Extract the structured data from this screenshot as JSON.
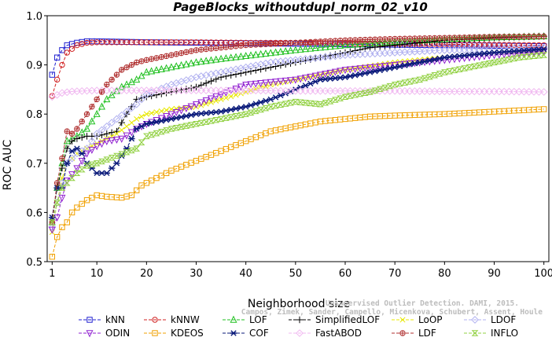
{
  "chart_data": {
    "type": "line",
    "title": "PageBlocks_withoutdupl_norm_02_v10",
    "xlabel": "Neighborhood size",
    "ylabel": "ROC AUC",
    "xlim": [
      0,
      101
    ],
    "ylim": [
      0.5,
      1.0
    ],
    "xticks": [
      1,
      10,
      20,
      30,
      40,
      50,
      60,
      70,
      80,
      90,
      100
    ],
    "yticks": [
      0.5,
      0.6,
      0.7,
      0.8,
      0.9,
      1.0
    ],
    "ytick_labels": [
      "0.5",
      "0.6",
      "0.7",
      "0.8",
      "0.9",
      "1.0"
    ],
    "grid": false,
    "legend_position": "bottom",
    "watermark": [
      "Campos, Zimek, Sander, Campello, Micenkova, Schubert, Assent, Houle",
      "Unsupervised Outlier Detection. DAMI, 2015."
    ],
    "series": [
      {
        "name": "kNN",
        "color": "#1f1fd0",
        "marker": "square",
        "points": [
          [
            1,
            0.88
          ],
          [
            2,
            0.915
          ],
          [
            3,
            0.93
          ],
          [
            4,
            0.94
          ],
          [
            6,
            0.945
          ],
          [
            8,
            0.948
          ],
          [
            10,
            0.948
          ],
          [
            15,
            0.947
          ],
          [
            20,
            0.946
          ],
          [
            30,
            0.945
          ],
          [
            40,
            0.944
          ],
          [
            50,
            0.943
          ],
          [
            60,
            0.942
          ],
          [
            70,
            0.941
          ],
          [
            80,
            0.94
          ],
          [
            90,
            0.939
          ],
          [
            100,
            0.938
          ]
        ]
      },
      {
        "name": "kNNW",
        "color": "#d02020",
        "marker": "circle",
        "points": [
          [
            1,
            0.837
          ],
          [
            2,
            0.87
          ],
          [
            3,
            0.9
          ],
          [
            4,
            0.925
          ],
          [
            6,
            0.94
          ],
          [
            8,
            0.945
          ],
          [
            10,
            0.946
          ],
          [
            15,
            0.946
          ],
          [
            20,
            0.946
          ],
          [
            30,
            0.946
          ],
          [
            40,
            0.945
          ],
          [
            50,
            0.945
          ],
          [
            60,
            0.944
          ],
          [
            70,
            0.943
          ],
          [
            80,
            0.942
          ],
          [
            90,
            0.941
          ],
          [
            100,
            0.94
          ]
        ]
      },
      {
        "name": "LOF",
        "color": "#20c020",
        "marker": "triangle",
        "points": [
          [
            1,
            0.58
          ],
          [
            2,
            0.65
          ],
          [
            3,
            0.7
          ],
          [
            4,
            0.745
          ],
          [
            6,
            0.755
          ],
          [
            8,
            0.77
          ],
          [
            10,
            0.8
          ],
          [
            12,
            0.83
          ],
          [
            15,
            0.855
          ],
          [
            18,
            0.87
          ],
          [
            20,
            0.885
          ],
          [
            25,
            0.895
          ],
          [
            30,
            0.905
          ],
          [
            35,
            0.912
          ],
          [
            40,
            0.918
          ],
          [
            50,
            0.93
          ],
          [
            60,
            0.94
          ],
          [
            70,
            0.947
          ],
          [
            80,
            0.952
          ],
          [
            90,
            0.956
          ],
          [
            100,
            0.958
          ]
        ]
      },
      {
        "name": "SimplifiedLOF",
        "color": "#000000",
        "marker": "plus",
        "points": [
          [
            1,
            0.59
          ],
          [
            2,
            0.65
          ],
          [
            3,
            0.69
          ],
          [
            4,
            0.73
          ],
          [
            5,
            0.745
          ],
          [
            6,
            0.75
          ],
          [
            8,
            0.755
          ],
          [
            10,
            0.755
          ],
          [
            12,
            0.76
          ],
          [
            14,
            0.765
          ],
          [
            16,
            0.8
          ],
          [
            18,
            0.83
          ],
          [
            20,
            0.835
          ],
          [
            25,
            0.845
          ],
          [
            30,
            0.855
          ],
          [
            35,
            0.875
          ],
          [
            40,
            0.885
          ],
          [
            45,
            0.895
          ],
          [
            50,
            0.905
          ],
          [
            55,
            0.915
          ],
          [
            60,
            0.925
          ],
          [
            65,
            0.935
          ],
          [
            70,
            0.94
          ],
          [
            80,
            0.95
          ],
          [
            90,
            0.955
          ],
          [
            100,
            0.958
          ]
        ]
      },
      {
        "name": "LoOP",
        "color": "#e8e800",
        "marker": "cross",
        "points": [
          [
            1,
            0.56
          ],
          [
            2,
            0.62
          ],
          [
            3,
            0.67
          ],
          [
            4,
            0.7
          ],
          [
            6,
            0.72
          ],
          [
            8,
            0.73
          ],
          [
            10,
            0.74
          ],
          [
            14,
            0.76
          ],
          [
            18,
            0.79
          ],
          [
            20,
            0.8
          ],
          [
            25,
            0.81
          ],
          [
            30,
            0.815
          ],
          [
            35,
            0.83
          ],
          [
            40,
            0.845
          ],
          [
            45,
            0.86
          ],
          [
            50,
            0.87
          ],
          [
            55,
            0.88
          ],
          [
            60,
            0.89
          ],
          [
            70,
            0.905
          ],
          [
            80,
            0.915
          ],
          [
            90,
            0.925
          ],
          [
            100,
            0.93
          ]
        ]
      },
      {
        "name": "LDOF",
        "color": "#b0b0f0",
        "marker": "diamond",
        "points": [
          [
            1,
            0.57
          ],
          [
            2,
            0.62
          ],
          [
            3,
            0.66
          ],
          [
            4,
            0.7
          ],
          [
            6,
            0.72
          ],
          [
            8,
            0.73
          ],
          [
            10,
            0.76
          ],
          [
            14,
            0.79
          ],
          [
            18,
            0.82
          ],
          [
            20,
            0.84
          ],
          [
            25,
            0.86
          ],
          [
            30,
            0.875
          ],
          [
            35,
            0.885
          ],
          [
            40,
            0.895
          ],
          [
            45,
            0.905
          ],
          [
            50,
            0.91
          ],
          [
            60,
            0.92
          ],
          [
            70,
            0.925
          ],
          [
            80,
            0.93
          ],
          [
            90,
            0.932
          ],
          [
            100,
            0.935
          ]
        ]
      },
      {
        "name": "ODIN",
        "color": "#9020d0",
        "marker": "triangle-down",
        "points": [
          [
            1,
            0.565
          ],
          [
            2,
            0.59
          ],
          [
            3,
            0.63
          ],
          [
            4,
            0.665
          ],
          [
            6,
            0.69
          ],
          [
            8,
            0.72
          ],
          [
            10,
            0.735
          ],
          [
            12,
            0.745
          ],
          [
            15,
            0.75
          ],
          [
            18,
            0.77
          ],
          [
            20,
            0.78
          ],
          [
            25,
            0.8
          ],
          [
            30,
            0.82
          ],
          [
            35,
            0.84
          ],
          [
            40,
            0.86
          ],
          [
            45,
            0.865
          ],
          [
            50,
            0.87
          ],
          [
            55,
            0.88
          ],
          [
            60,
            0.89
          ],
          [
            70,
            0.9
          ],
          [
            80,
            0.91
          ],
          [
            90,
            0.92
          ],
          [
            100,
            0.928
          ]
        ]
      },
      {
        "name": "KDEOS",
        "color": "#f0a000",
        "marker": "square",
        "points": [
          [
            1,
            0.51
          ],
          [
            2,
            0.55
          ],
          [
            3,
            0.57
          ],
          [
            4,
            0.58
          ],
          [
            5,
            0.6
          ],
          [
            6,
            0.61
          ],
          [
            8,
            0.625
          ],
          [
            10,
            0.635
          ],
          [
            12,
            0.632
          ],
          [
            15,
            0.63
          ],
          [
            17,
            0.635
          ],
          [
            19,
            0.655
          ],
          [
            20,
            0.66
          ],
          [
            25,
            0.685
          ],
          [
            30,
            0.705
          ],
          [
            35,
            0.725
          ],
          [
            40,
            0.745
          ],
          [
            45,
            0.765
          ],
          [
            50,
            0.775
          ],
          [
            55,
            0.785
          ],
          [
            60,
            0.79
          ],
          [
            65,
            0.795
          ],
          [
            70,
            0.797
          ],
          [
            80,
            0.8
          ],
          [
            90,
            0.805
          ],
          [
            100,
            0.81
          ]
        ]
      },
      {
        "name": "COF",
        "color": "#0a1a7a",
        "marker": "asterisk",
        "points": [
          [
            1,
            0.59
          ],
          [
            2,
            0.65
          ],
          [
            3,
            0.65
          ],
          [
            4,
            0.7
          ],
          [
            5,
            0.725
          ],
          [
            6,
            0.73
          ],
          [
            7,
            0.72
          ],
          [
            8,
            0.7
          ],
          [
            10,
            0.68
          ],
          [
            12,
            0.68
          ],
          [
            14,
            0.7
          ],
          [
            16,
            0.73
          ],
          [
            17,
            0.75
          ],
          [
            18,
            0.77
          ],
          [
            20,
            0.78
          ],
          [
            25,
            0.79
          ],
          [
            30,
            0.8
          ],
          [
            35,
            0.805
          ],
          [
            40,
            0.815
          ],
          [
            45,
            0.83
          ],
          [
            50,
            0.85
          ],
          [
            55,
            0.87
          ],
          [
            60,
            0.875
          ],
          [
            65,
            0.885
          ],
          [
            70,
            0.895
          ],
          [
            75,
            0.905
          ],
          [
            80,
            0.915
          ],
          [
            90,
            0.925
          ],
          [
            100,
            0.932
          ]
        ]
      },
      {
        "name": "FastABOD",
        "color": "#f0b8f0",
        "marker": "diamond",
        "points": [
          [
            1,
            0.835
          ],
          [
            3,
            0.843
          ],
          [
            5,
            0.846
          ],
          [
            10,
            0.848
          ],
          [
            20,
            0.848
          ],
          [
            30,
            0.848
          ],
          [
            40,
            0.848
          ],
          [
            50,
            0.847
          ],
          [
            60,
            0.847
          ],
          [
            70,
            0.847
          ],
          [
            80,
            0.846
          ],
          [
            90,
            0.846
          ],
          [
            100,
            0.845
          ]
        ]
      },
      {
        "name": "LDF",
        "color": "#b03030",
        "marker": "circle-plus",
        "points": [
          [
            1,
            0.58
          ],
          [
            2,
            0.66
          ],
          [
            3,
            0.71
          ],
          [
            4,
            0.765
          ],
          [
            5,
            0.76
          ],
          [
            6,
            0.77
          ],
          [
            8,
            0.8
          ],
          [
            10,
            0.83
          ],
          [
            12,
            0.86
          ],
          [
            15,
            0.89
          ],
          [
            18,
            0.905
          ],
          [
            20,
            0.91
          ],
          [
            25,
            0.92
          ],
          [
            30,
            0.93
          ],
          [
            35,
            0.935
          ],
          [
            40,
            0.94
          ],
          [
            50,
            0.945
          ],
          [
            60,
            0.95
          ],
          [
            70,
            0.953
          ],
          [
            80,
            0.955
          ],
          [
            90,
            0.957
          ],
          [
            100,
            0.958
          ]
        ]
      },
      {
        "name": "INFLO",
        "color": "#90d040",
        "marker": "hourglass",
        "points": [
          [
            1,
            0.58
          ],
          [
            2,
            0.62
          ],
          [
            3,
            0.65
          ],
          [
            4,
            0.66
          ],
          [
            6,
            0.68
          ],
          [
            8,
            0.695
          ],
          [
            10,
            0.7
          ],
          [
            14,
            0.715
          ],
          [
            18,
            0.73
          ],
          [
            20,
            0.755
          ],
          [
            25,
            0.77
          ],
          [
            30,
            0.78
          ],
          [
            35,
            0.79
          ],
          [
            40,
            0.8
          ],
          [
            45,
            0.815
          ],
          [
            50,
            0.825
          ],
          [
            55,
            0.82
          ],
          [
            60,
            0.835
          ],
          [
            65,
            0.845
          ],
          [
            70,
            0.86
          ],
          [
            75,
            0.87
          ],
          [
            80,
            0.885
          ],
          [
            85,
            0.895
          ],
          [
            90,
            0.905
          ],
          [
            95,
            0.915
          ],
          [
            100,
            0.92
          ]
        ]
      }
    ],
    "legend_rows": [
      [
        "kNN",
        "kNNW",
        "LOF",
        "SimplifiedLOF",
        "LoOP",
        "LDOF"
      ],
      [
        "ODIN",
        "KDEOS",
        "COF",
        "FastABOD",
        "LDF",
        "INFLO"
      ]
    ]
  }
}
